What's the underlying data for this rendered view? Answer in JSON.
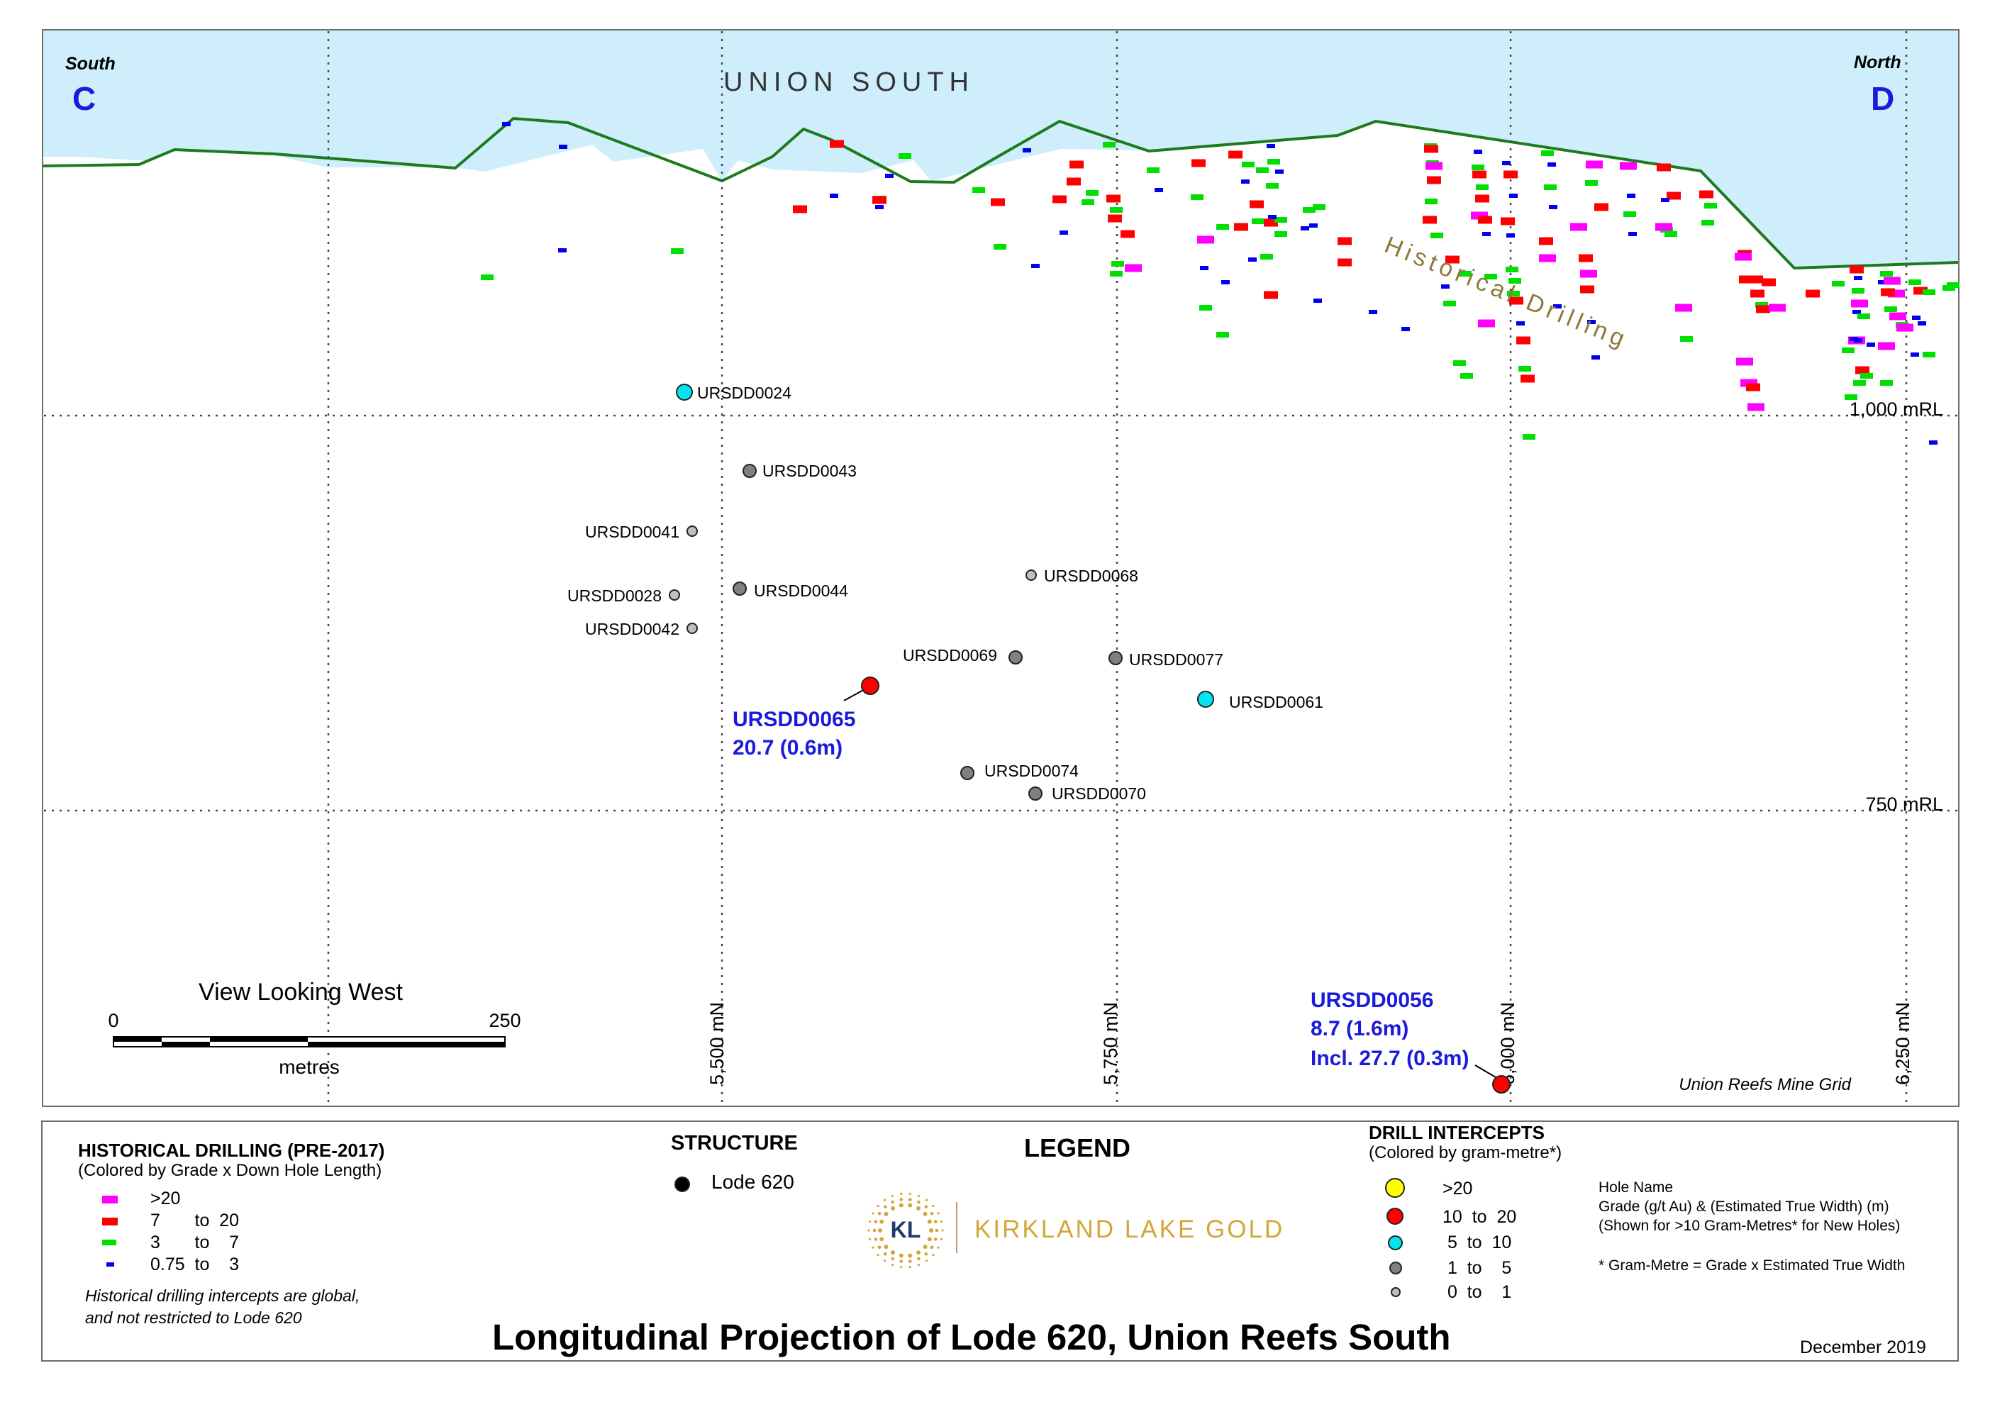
{
  "map": {
    "title_area": "UNION SOUTH",
    "south_label": "South",
    "north_label": "North",
    "section_start": "C",
    "section_end": "D",
    "annotation_historical": "Historical Drilling",
    "rl_labels": [
      "1,000 mRL",
      "750 mRL"
    ],
    "northing_labels": [
      "5,500 mN",
      "5,750 mN",
      "6,000 mN",
      "6,250 mN"
    ],
    "view_label": "View Looking West",
    "scale": {
      "min": "0",
      "max": "250",
      "unit": "metres"
    },
    "grid_label": "Union Reefs Mine Grid",
    "colors": {
      "sky": "#cdeefa",
      "topo": "#1d7a1d",
      "pink": "#ff00ff",
      "red": "#ff0000",
      "green": "#00e000",
      "blue": "#0000ee",
      "yellow": "#ffff00",
      "cyan": "#00e5f0",
      "dark_grey": "#808080",
      "light_grey": "#c0c0c0",
      "callout": "#1a1adc"
    },
    "drill_holes": [
      {
        "name": "URSDD0024",
        "class": "5 to 10"
      },
      {
        "name": "URSDD0043",
        "class": "1 to 5"
      },
      {
        "name": "URSDD0041",
        "class": "0 to 1"
      },
      {
        "name": "URSDD0028",
        "class": "0 to 1"
      },
      {
        "name": "URSDD0044",
        "class": "1 to 5"
      },
      {
        "name": "URSDD0042",
        "class": "0 to 1"
      },
      {
        "name": "URSDD0068",
        "class": "0 to 1"
      },
      {
        "name": "URSDD0069",
        "class": "1 to 5"
      },
      {
        "name": "URSDD0077",
        "class": "1 to 5"
      },
      {
        "name": "URSDD0065",
        "class": "10 to 20"
      },
      {
        "name": "URSDD0061",
        "class": "5 to 10"
      },
      {
        "name": "URSDD0074",
        "class": "1 to 5"
      },
      {
        "name": "URSDD0070",
        "class": "1 to 5"
      },
      {
        "name": "URSDD0056",
        "class": "10 to 20"
      }
    ],
    "callouts": [
      {
        "hole": "URSDD0065",
        "line1": "20.7 (0.6m)"
      },
      {
        "hole": "URSDD0056",
        "line1": "8.7 (1.6m)",
        "line2": "Incl. 27.7 (0.3m)"
      }
    ]
  },
  "legend": {
    "heading": "LEGEND",
    "historical": {
      "title": "HISTORICAL DRILLING (PRE-2017)",
      "subtitle": "(Colored by Grade x Down Hole Length)",
      "rows": [
        {
          "color": "#ff00ff",
          "label": ">20"
        },
        {
          "color": "#ff0000",
          "label": "7       to  20"
        },
        {
          "color": "#00e000",
          "label": "3       to    7"
        },
        {
          "color": "#0000ee",
          "label": "0.75  to    3"
        }
      ],
      "note_line1": "Historical drilling intercepts are global,",
      "note_line2": "and not restricted to Lode 620"
    },
    "structure": {
      "title": "STRUCTURE",
      "item": "Lode 620"
    },
    "logo": {
      "initials": "KL",
      "text": "KIRKLAND LAKE GOLD"
    },
    "intercepts": {
      "title": "DRILL INTERCEPTS",
      "subtitle": "(Colored by gram-metre*)",
      "rows": [
        {
          "color": "#ffff00",
          "label": ">20"
        },
        {
          "color": "#ff0000",
          "label": "10  to  20"
        },
        {
          "color": "#00e5f0",
          "label": " 5  to  10"
        },
        {
          "color": "#808080",
          "label": " 1  to    5"
        },
        {
          "color": "#c0c0c0",
          "label": " 0  to    1"
        }
      ],
      "hole_name": "Hole Name",
      "grade_line": "Grade (g/t Au) & (Estimated True Width) (m)",
      "shown_line": "(Shown for >10 Gram-Metres* for New Holes)",
      "footnote": "* Gram-Metre = Grade x Estimated True Width"
    },
    "main_title": "Longitudinal Projection of Lode 620, Union Reefs South",
    "date": "December 2019"
  }
}
